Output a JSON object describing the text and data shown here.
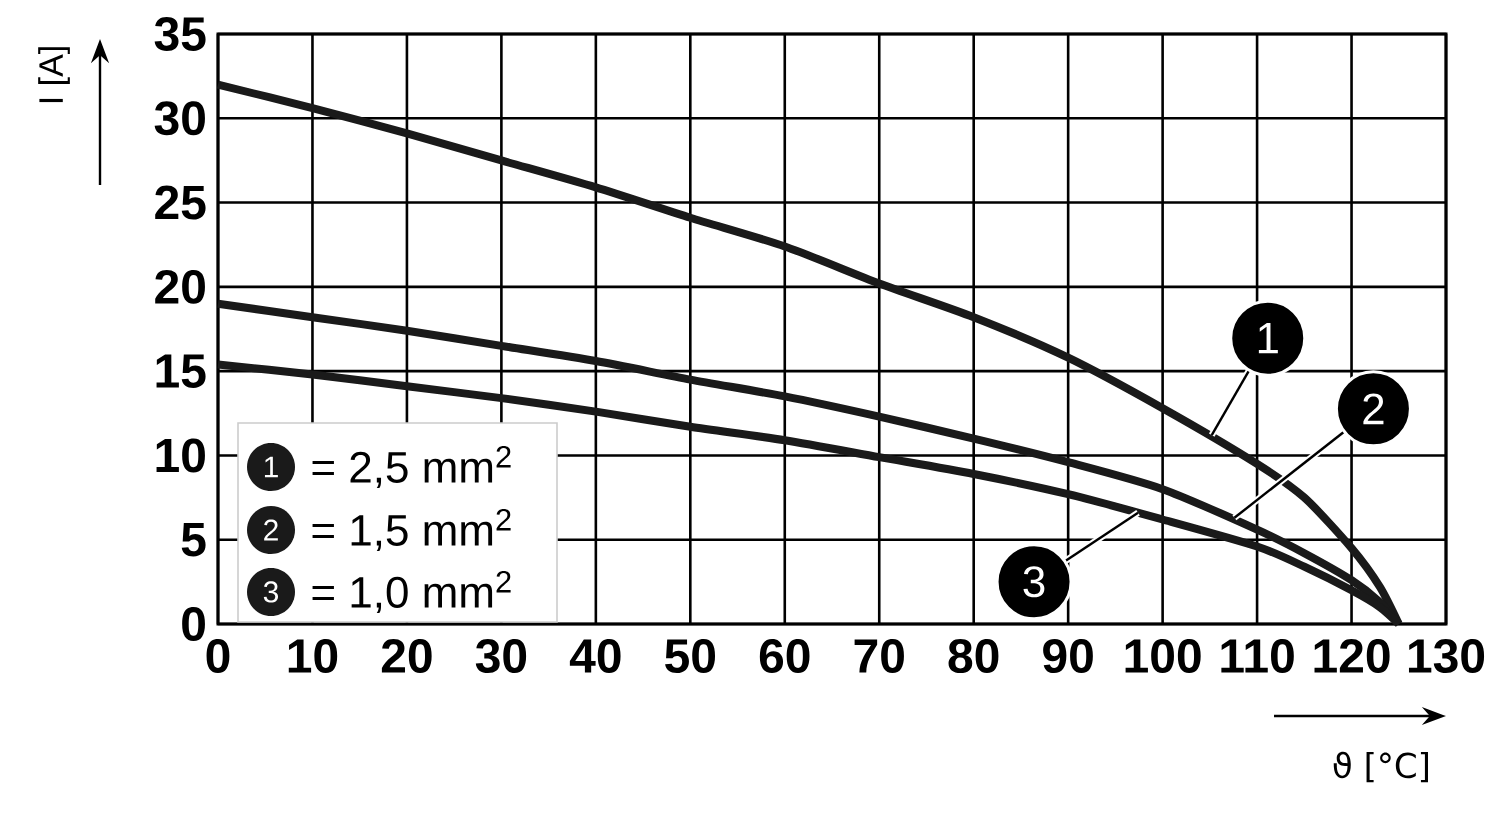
{
  "chart_data": {
    "type": "line",
    "xlabel": "ϑ [°C]",
    "ylabel": "I [A]",
    "x": [
      0,
      10,
      20,
      30,
      40,
      50,
      60,
      70,
      80,
      90,
      100,
      110,
      115,
      120,
      123,
      125
    ],
    "series": [
      {
        "name": "= 2,5 mm$^{2}$",
        "color": "#1a1a1a",
        "values": [
          32,
          30.6,
          29.1,
          27.5,
          25.9,
          24.1,
          22.4,
          20.2,
          18.2,
          15.8,
          12.8,
          9.5,
          7.5,
          4.5,
          2.2,
          0
        ]
      },
      {
        "name": "= 1,5 mm$^{2}$",
        "color": "#1a1a1a",
        "values": [
          19,
          18.2,
          17.4,
          16.5,
          15.6,
          14.5,
          13.5,
          12.3,
          11,
          9.6,
          8,
          5.6,
          4.2,
          2.6,
          1.3,
          0
        ]
      },
      {
        "name": "= 1,0 mm$^{2}$",
        "color": "#1a1a1a",
        "values": [
          15.4,
          14.8,
          14.1,
          13.4,
          12.6,
          11.7,
          10.9,
          9.9,
          8.9,
          7.7,
          6.2,
          4.6,
          3.4,
          2,
          1,
          0
        ]
      }
    ],
    "annotations": [
      {
        "text": "1",
        "x": 105.2,
        "y": 11.2
      },
      {
        "text": "2",
        "x": 107.6,
        "y": 6.3
      },
      {
        "text": "3",
        "x": 97.4,
        "y": 6.6
      }
    ],
    "xlim": [
      0,
      130
    ],
    "ylim": [
      0,
      35
    ],
    "xticks": [
      0,
      10,
      20,
      30,
      40,
      50,
      60,
      70,
      80,
      90,
      100,
      110,
      120,
      130
    ],
    "yticks": [
      0,
      5,
      10,
      15,
      20,
      25,
      30,
      35
    ],
    "grid": true,
    "legend": "bottom left",
    "marker": "none",
    "line_style": "solid"
  }
}
